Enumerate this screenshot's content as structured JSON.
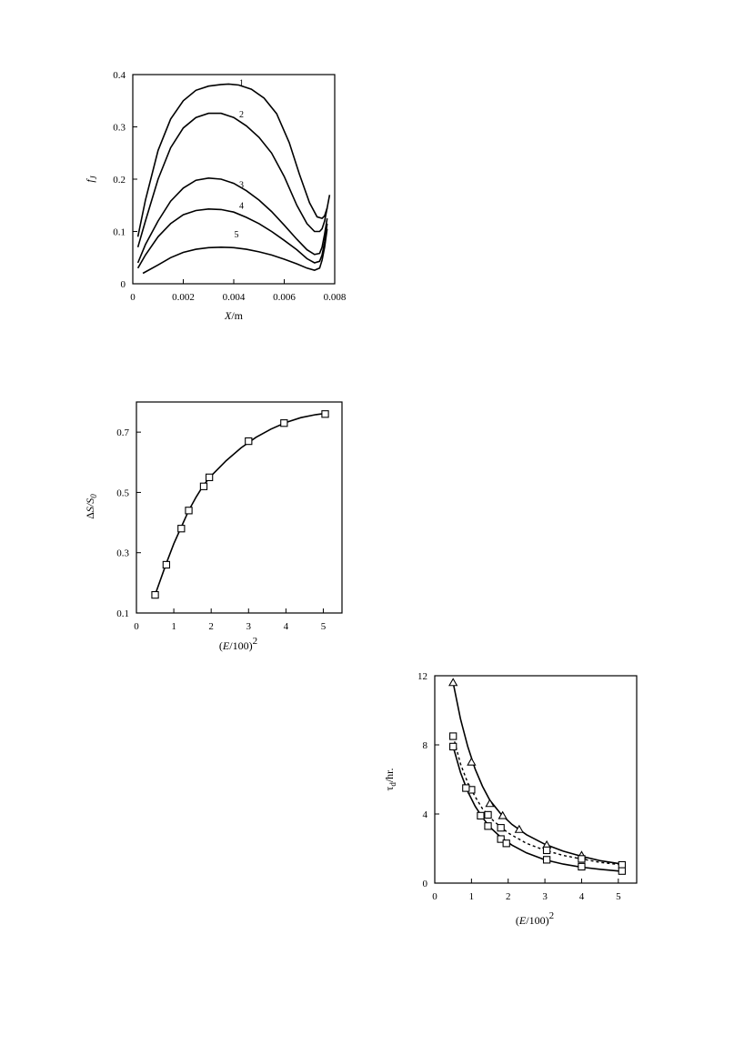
{
  "chart_data": [
    {
      "type": "line",
      "xlabel_main": "X",
      "xlabel_unit": "/m",
      "ylabel_main": "f",
      "ylabel_sub": "J",
      "xlim": [
        0,
        0.008
      ],
      "ylim": [
        0,
        0.4
      ],
      "xticks": [
        0,
        0.002,
        0.004,
        0.006,
        0.008
      ],
      "xtick_labels": [
        "0",
        "0.002",
        "0.004",
        "0.006",
        "0.008"
      ],
      "yticks": [
        0,
        0.1,
        0.2,
        0.3,
        0.4
      ],
      "ytick_labels": [
        "0",
        "0.1",
        "0.2",
        "0.3",
        "0.4"
      ],
      "series": [
        {
          "label": "1",
          "label_at": [
            0.004,
            0.375
          ],
          "x": [
            0.0002,
            0.0005,
            0.001,
            0.0015,
            0.002,
            0.0025,
            0.003,
            0.0035,
            0.0038,
            0.0042,
            0.0047,
            0.0052,
            0.0057,
            0.0062,
            0.0066,
            0.007,
            0.0073,
            0.0075,
            0.0076,
            0.0077,
            0.0078
          ],
          "y": [
            0.09,
            0.16,
            0.255,
            0.315,
            0.35,
            0.37,
            0.378,
            0.381,
            0.382,
            0.38,
            0.372,
            0.355,
            0.325,
            0.27,
            0.21,
            0.155,
            0.128,
            0.125,
            0.13,
            0.145,
            0.17
          ]
        },
        {
          "label": "2",
          "label_at": [
            0.004,
            0.315
          ],
          "x": [
            0.0002,
            0.0005,
            0.001,
            0.0015,
            0.002,
            0.0025,
            0.003,
            0.0035,
            0.004,
            0.0045,
            0.005,
            0.0055,
            0.006,
            0.0065,
            0.0069,
            0.0072,
            0.0074,
            0.0075,
            0.0076,
            0.0077
          ],
          "y": [
            0.07,
            0.12,
            0.2,
            0.26,
            0.298,
            0.318,
            0.326,
            0.326,
            0.318,
            0.302,
            0.28,
            0.25,
            0.205,
            0.15,
            0.115,
            0.1,
            0.1,
            0.105,
            0.12,
            0.145
          ]
        },
        {
          "label": "3",
          "label_at": [
            0.004,
            0.18
          ],
          "x": [
            0.0002,
            0.0005,
            0.001,
            0.0015,
            0.002,
            0.0025,
            0.003,
            0.0035,
            0.004,
            0.0045,
            0.005,
            0.0055,
            0.006,
            0.0065,
            0.0069,
            0.0072,
            0.0074,
            0.0075,
            0.0076,
            0.0077
          ],
          "y": [
            0.04,
            0.075,
            0.12,
            0.158,
            0.183,
            0.198,
            0.202,
            0.2,
            0.192,
            0.178,
            0.16,
            0.138,
            0.112,
            0.085,
            0.065,
            0.056,
            0.058,
            0.07,
            0.095,
            0.125
          ]
        },
        {
          "label": "4",
          "label_at": [
            0.004,
            0.14
          ],
          "x": [
            0.0002,
            0.0005,
            0.001,
            0.0015,
            0.002,
            0.0025,
            0.003,
            0.0035,
            0.004,
            0.0045,
            0.005,
            0.0055,
            0.006,
            0.0065,
            0.0069,
            0.0072,
            0.0074,
            0.0075,
            0.0076,
            0.0077
          ],
          "y": [
            0.03,
            0.055,
            0.09,
            0.115,
            0.132,
            0.14,
            0.143,
            0.142,
            0.137,
            0.127,
            0.115,
            0.1,
            0.083,
            0.065,
            0.048,
            0.04,
            0.043,
            0.055,
            0.08,
            0.115
          ]
        },
        {
          "label": "5",
          "label_at": [
            0.0038,
            0.085
          ],
          "x": [
            0.0004,
            0.001,
            0.0015,
            0.002,
            0.0025,
            0.003,
            0.0035,
            0.004,
            0.0045,
            0.005,
            0.0055,
            0.006,
            0.0065,
            0.0069,
            0.0072,
            0.0074,
            0.0075,
            0.0076,
            0.0077
          ],
          "y": [
            0.02,
            0.036,
            0.05,
            0.06,
            0.066,
            0.069,
            0.07,
            0.069,
            0.066,
            0.061,
            0.055,
            0.047,
            0.038,
            0.03,
            0.026,
            0.03,
            0.045,
            0.07,
            0.105
          ]
        }
      ]
    },
    {
      "type": "scatter",
      "xlabel_main": "E",
      "xlabel_pre": "(",
      "xlabel_post": "/100)",
      "xlabel_sup": "2",
      "ylabel_pre": "Δ",
      "ylabel_main": "S/S",
      "ylabel_sub": "0",
      "xlim": [
        0,
        5.5
      ],
      "ylim": [
        0.1,
        0.8
      ],
      "xticks": [
        0,
        1,
        2,
        3,
        4,
        5
      ],
      "xtick_labels": [
        "0",
        "1",
        "2",
        "3",
        "4",
        "5"
      ],
      "yticks": [
        0.1,
        0.3,
        0.5,
        0.7
      ],
      "ytick_labels": [
        "0.1",
        "0.3",
        "0.5",
        "0.7"
      ],
      "series": [
        {
          "marker": "square",
          "points": {
            "x": [
              0.5,
              0.8,
              1.2,
              1.4,
              1.8,
              1.95,
              3.0,
              3.95,
              5.05
            ],
            "y": [
              0.16,
              0.26,
              0.38,
              0.44,
              0.52,
              0.55,
              0.67,
              0.73,
              0.76
            ]
          },
          "fit": {
            "x": [
              0.5,
              0.8,
              1.0,
              1.2,
              1.4,
              1.6,
              1.8,
              2.0,
              2.4,
              2.8,
              3.2,
              3.6,
              4.0,
              4.4,
              4.8,
              5.1
            ],
            "y": [
              0.16,
              0.265,
              0.33,
              0.385,
              0.44,
              0.485,
              0.525,
              0.555,
              0.605,
              0.648,
              0.683,
              0.71,
              0.732,
              0.748,
              0.758,
              0.763
            ]
          }
        }
      ]
    },
    {
      "type": "scatter",
      "xlabel_main": "E",
      "xlabel_pre": "(",
      "xlabel_post": "/100)",
      "xlabel_sup": "2",
      "ylabel_main": "τ",
      "ylabel_sub": "d",
      "ylabel_post": "/hr.",
      "xlim": [
        0,
        5.5
      ],
      "ylim": [
        0,
        12
      ],
      "xticks": [
        0,
        1,
        2,
        3,
        4,
        5
      ],
      "xtick_labels": [
        "0",
        "1",
        "2",
        "3",
        "4",
        "5"
      ],
      "yticks": [
        0,
        4,
        8,
        12
      ],
      "ytick_labels": [
        "0",
        "4",
        "8",
        "12"
      ],
      "series": [
        {
          "marker": "triangle",
          "line": "solid",
          "points": {
            "x": [
              0.5,
              1.0,
              1.5,
              1.85,
              2.3,
              3.05,
              4.0
            ],
            "y": [
              11.6,
              7.0,
              4.6,
              3.9,
              3.1,
              2.2,
              1.6
            ]
          },
          "fit": {
            "x": [
              0.5,
              0.7,
              0.9,
              1.1,
              1.3,
              1.5,
              1.8,
              2.1,
              2.5,
              3.0,
              3.5,
              4.0,
              4.5,
              5.1
            ],
            "y": [
              11.6,
              9.5,
              7.9,
              6.6,
              5.6,
              4.8,
              4.0,
              3.4,
              2.8,
              2.25,
              1.85,
              1.55,
              1.3,
              1.1
            ]
          }
        },
        {
          "marker": "square",
          "line": "dashed",
          "points": {
            "x": [
              0.5,
              1.0,
              1.45,
              1.8,
              3.05,
              4.0,
              5.1
            ],
            "y": [
              8.5,
              5.4,
              3.95,
              3.2,
              1.9,
              1.4,
              1.05
            ]
          },
          "fit": {
            "x": [
              0.5,
              0.7,
              0.9,
              1.1,
              1.3,
              1.6,
              2.0,
              2.5,
              3.0,
              3.5,
              4.0,
              4.5,
              5.1
            ],
            "y": [
              8.5,
              6.9,
              5.8,
              5.0,
              4.3,
              3.6,
              2.9,
              2.3,
              1.9,
              1.6,
              1.4,
              1.2,
              1.05
            ]
          }
        },
        {
          "marker": "square",
          "line": "solid",
          "points": {
            "x": [
              0.5,
              0.85,
              1.25,
              1.45,
              1.8,
              1.95,
              3.05,
              4.0,
              5.1
            ],
            "y": [
              7.9,
              5.5,
              3.9,
              3.3,
              2.55,
              2.3,
              1.35,
              0.95,
              0.7
            ]
          },
          "fit": {
            "x": [
              0.5,
              0.7,
              0.9,
              1.1,
              1.3,
              1.5,
              1.8,
              2.1,
              2.5,
              3.0,
              3.5,
              4.0,
              4.5,
              5.1
            ],
            "y": [
              7.9,
              6.4,
              5.3,
              4.45,
              3.8,
              3.25,
              2.65,
              2.2,
              1.75,
              1.35,
              1.1,
              0.92,
              0.8,
              0.68
            ]
          }
        }
      ]
    }
  ]
}
